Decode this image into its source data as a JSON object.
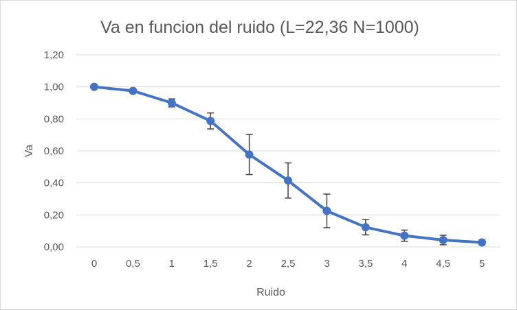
{
  "chart_data": {
    "type": "line",
    "title": "Va en  funcion del ruido (L=22,36 N=1000)",
    "xlabel": "Ruido",
    "ylabel": "Va",
    "categories": [
      "0",
      "0,5",
      "1",
      "1,5",
      "2",
      "2,5",
      "3",
      "3,5",
      "4",
      "4,5",
      "5"
    ],
    "y_ticks": [
      "0,00",
      "0,20",
      "0,40",
      "0,60",
      "0,80",
      "1,00",
      "1,20"
    ],
    "ylim": [
      0,
      1.2
    ],
    "grid": true,
    "legend": "none",
    "series": [
      {
        "values": [
          1.0,
          0.975,
          0.9,
          0.787,
          0.577,
          0.415,
          0.225,
          0.123,
          0.07,
          0.043,
          0.028
        ],
        "errors": [
          0.0,
          0.005,
          0.025,
          0.05,
          0.125,
          0.11,
          0.105,
          0.048,
          0.035,
          0.03,
          0.015
        ],
        "color": "#4472C4"
      }
    ],
    "error_bar_color": "#404040",
    "grid_color": "#d9d9d9"
  }
}
